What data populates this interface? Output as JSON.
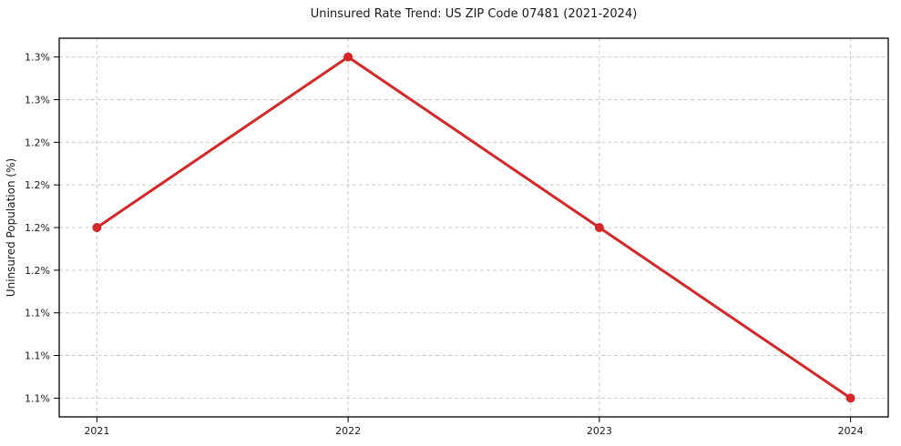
{
  "chart_data": {
    "type": "line",
    "title": "Uninsured Rate Trend: US ZIP Code 07481 (2021-2024)",
    "xlabel": "",
    "ylabel": "Uninsured Population (%)",
    "x": [
      2021,
      2022,
      2023,
      2024
    ],
    "values": [
      1.2,
      1.3,
      1.2,
      1.1
    ],
    "xlim": [
      2020.85,
      2024.15
    ],
    "ylim": [
      1.089,
      1.311
    ],
    "xticks": {
      "values": [
        2021,
        2022,
        2023,
        2024
      ],
      "labels": [
        "2021",
        "2022",
        "2023",
        "2024"
      ]
    },
    "yticks": {
      "values": [
        1.3,
        1.275,
        1.25,
        1.225,
        1.2,
        1.175,
        1.15,
        1.125,
        1.1
      ],
      "labels": [
        "1.3%",
        "1.3%",
        "1.2%",
        "1.2%",
        "1.2%",
        "1.2%",
        "1.1%",
        "1.1%",
        "1.1%"
      ]
    },
    "grid": true,
    "legend": false,
    "line_color": "#d62728",
    "marker": "circle"
  }
}
